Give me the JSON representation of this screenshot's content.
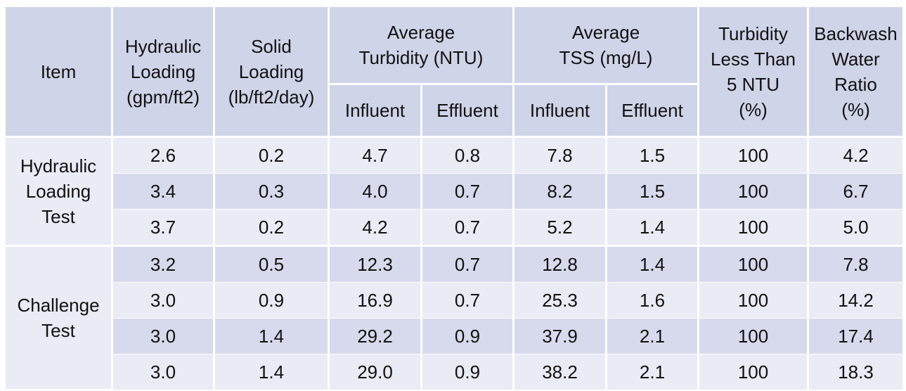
{
  "headers": {
    "item": "Item",
    "hydraulic_loading": [
      "Hydraulic",
      "Loading",
      "(gpm/ft2)"
    ],
    "solid_loading": [
      "Solid",
      "Loading",
      "(lb/ft2/day)"
    ],
    "avg_turbidity": [
      "Average",
      "Turbidity (NTU)"
    ],
    "avg_tss": [
      "Average",
      "TSS (mg/L)"
    ],
    "turbidity_lt5": [
      "Turbidity",
      "Less Than",
      "5 NTU",
      "(%)"
    ],
    "backwash_ratio": [
      "Backwash",
      "Water",
      "Ratio",
      "(%)"
    ],
    "influent": "Influent",
    "effluent": "Effluent"
  },
  "groups": [
    {
      "label": [
        "Hydraulic",
        "Loading",
        "Test"
      ],
      "rows": [
        [
          "2.6",
          "0.2",
          "4.7",
          "0.8",
          "7.8",
          "1.5",
          "100",
          "4.2"
        ],
        [
          "3.4",
          "0.3",
          "4.0",
          "0.7",
          "8.2",
          "1.5",
          "100",
          "6.7"
        ],
        [
          "3.7",
          "0.2",
          "4.2",
          "0.7",
          "5.2",
          "1.4",
          "100",
          "5.0"
        ]
      ]
    },
    {
      "label": [
        "Challenge",
        "Test"
      ],
      "rows": [
        [
          "3.2",
          "0.5",
          "12.3",
          "0.7",
          "12.8",
          "1.4",
          "100",
          "7.8"
        ],
        [
          "3.0",
          "0.9",
          "16.9",
          "0.7",
          "25.3",
          "1.6",
          "100",
          "14.2"
        ],
        [
          "3.0",
          "1.4",
          "29.2",
          "0.9",
          "37.9",
          "2.1",
          "100",
          "17.4"
        ],
        [
          "3.0",
          "1.4",
          "29.0",
          "0.9",
          "38.2",
          "2.1",
          "100",
          "18.3"
        ]
      ]
    }
  ],
  "colors": {
    "header_bg": "#cfd4e8",
    "row_light": "#e9ebf5",
    "row_dark": "#d6daec",
    "grid": "#ffffff"
  }
}
